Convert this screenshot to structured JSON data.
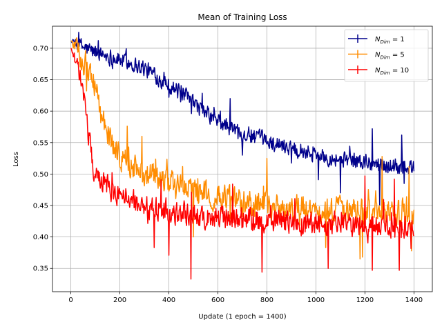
{
  "chart_data": {
    "type": "line",
    "title": "Mean of Training Loss",
    "xlabel": "Update (1 epoch = 1400)",
    "ylabel": "Loss",
    "xlim": [
      -75,
      1475
    ],
    "ylim": [
      0.313,
      0.735
    ],
    "x_ticks": [
      0,
      200,
      400,
      600,
      800,
      1000,
      1200,
      1400
    ],
    "x_tick_labels": [
      "0",
      "200",
      "400",
      "600",
      "800",
      "1000",
      "1200",
      "1400"
    ],
    "y_ticks": [
      0.35,
      0.4,
      0.45,
      0.5,
      0.55,
      0.6,
      0.65,
      0.7
    ],
    "y_tick_labels": [
      "0.35",
      "0.40",
      "0.45",
      "0.50",
      "0.55",
      "0.60",
      "0.65",
      "0.70"
    ],
    "grid": true,
    "legend_position": "top-right",
    "series": [
      {
        "name": "N_Dim = 1",
        "legend_base": "N",
        "legend_sub": "Dim",
        "legend_suffix": " = 1",
        "color": "#00008b",
        "x": [
          0,
          25,
          50,
          75,
          100,
          150,
          200,
          250,
          300,
          350,
          400,
          450,
          500,
          550,
          600,
          650,
          700,
          750,
          800,
          850,
          900,
          950,
          1000,
          1050,
          1100,
          1150,
          1200,
          1250,
          1300,
          1350,
          1400
        ],
        "y": [
          0.711,
          0.706,
          0.702,
          0.697,
          0.694,
          0.688,
          0.682,
          0.676,
          0.668,
          0.655,
          0.643,
          0.628,
          0.612,
          0.597,
          0.583,
          0.573,
          0.565,
          0.558,
          0.552,
          0.547,
          0.543,
          0.538,
          0.532,
          0.528,
          0.524,
          0.521,
          0.518,
          0.516,
          0.514,
          0.512,
          0.51
        ],
        "noise": 0.018,
        "samples": [
          [
            1010,
            0.491
          ],
          [
            1100,
            0.47
          ],
          [
            1260,
            0.451
          ],
          [
            1230,
            0.572
          ],
          [
            1350,
            0.562
          ],
          [
            650,
            0.62
          ],
          [
            610,
            0.6
          ],
          [
            700,
            0.53
          ],
          [
            1360,
            0.485
          ],
          [
            400,
            0.622
          ]
        ]
      },
      {
        "name": "N_Dim = 5",
        "legend_base": "N",
        "legend_sub": "Dim",
        "legend_suffix": " = 5",
        "color": "#ff8c00",
        "x": [
          0,
          25,
          50,
          75,
          100,
          125,
          150,
          175,
          200,
          250,
          300,
          350,
          400,
          500,
          600,
          700,
          800,
          900,
          1000,
          1100,
          1200,
          1300,
          1400
        ],
        "y": [
          0.712,
          0.697,
          0.68,
          0.665,
          0.64,
          0.59,
          0.565,
          0.54,
          0.53,
          0.513,
          0.502,
          0.494,
          0.485,
          0.473,
          0.463,
          0.455,
          0.45,
          0.447,
          0.444,
          0.442,
          0.44,
          0.438,
          0.436
        ],
        "noise": 0.028,
        "samples": [
          [
            230,
            0.576
          ],
          [
            290,
            0.56
          ],
          [
            1180,
            0.365
          ],
          [
            1190,
            0.368
          ],
          [
            1390,
            0.378
          ],
          [
            1040,
            0.383
          ],
          [
            1380,
            0.512
          ],
          [
            1270,
            0.528
          ],
          [
            500,
            0.4
          ],
          [
            800,
            0.525
          ]
        ]
      },
      {
        "name": "N_Dim = 10",
        "legend_base": "N",
        "legend_sub": "Dim",
        "legend_suffix": " = 10",
        "color": "#ff0000",
        "x": [
          0,
          10,
          25,
          40,
          50,
          60,
          70,
          80,
          90,
          100,
          120,
          150,
          200,
          250,
          300,
          400,
          500,
          600,
          700,
          800,
          900,
          1000,
          1100,
          1200,
          1300,
          1400
        ],
        "y": [
          0.7,
          0.69,
          0.675,
          0.65,
          0.625,
          0.6,
          0.57,
          0.54,
          0.515,
          0.5,
          0.49,
          0.48,
          0.466,
          0.457,
          0.45,
          0.441,
          0.435,
          0.43,
          0.427,
          0.425,
          0.423,
          0.421,
          0.42,
          0.419,
          0.418,
          0.418
        ],
        "noise": 0.026,
        "samples": [
          [
            490,
            0.333
          ],
          [
            400,
            0.371
          ],
          [
            340,
            0.383
          ],
          [
            780,
            0.344
          ],
          [
            1050,
            0.35
          ],
          [
            1230,
            0.347
          ],
          [
            1340,
            0.347
          ],
          [
            1200,
            0.497
          ],
          [
            1320,
            0.492
          ],
          [
            660,
            0.484
          ]
        ]
      }
    ]
  }
}
